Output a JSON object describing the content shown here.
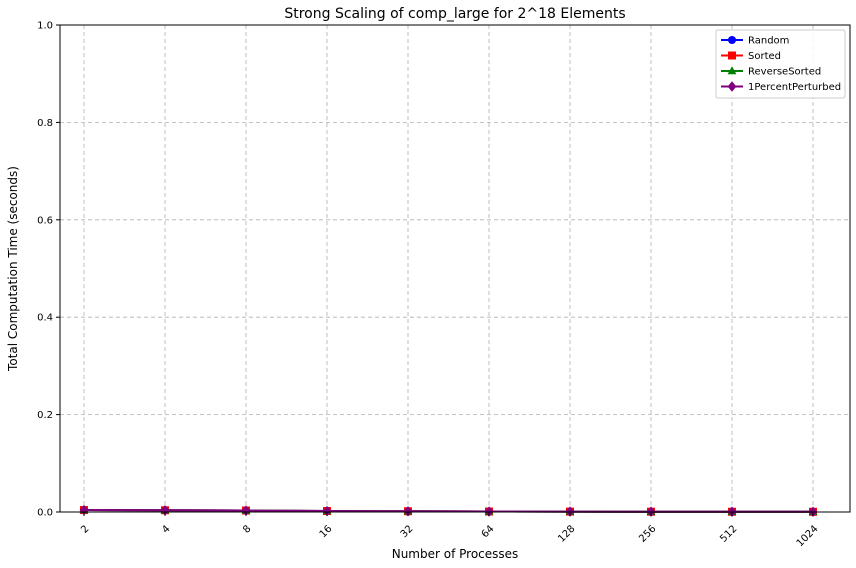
{
  "chart_data": {
    "type": "line",
    "title": "Strong Scaling of comp_large for 2^18 Elements",
    "xlabel": "Number of Processes",
    "ylabel": "Total Computation Time (seconds)",
    "categories": [
      "2",
      "4",
      "8",
      "16",
      "32",
      "64",
      "128",
      "256",
      "512",
      "1024"
    ],
    "x_scale": "log2",
    "ylim": [
      0,
      1.0
    ],
    "yticks": [
      "0.0",
      "0.2",
      "0.4",
      "0.6",
      "0.8",
      "1.0"
    ],
    "grid": true,
    "legend_position": "top-right",
    "series": [
      {
        "name": "Random",
        "color": "#0000ff",
        "marker": "circle",
        "values": [
          0.004,
          0.0035,
          0.003,
          0.002,
          0.0015,
          0.001,
          0.0008,
          0.0006,
          0.0005,
          0.0004
        ]
      },
      {
        "name": "Sorted",
        "color": "#ff0000",
        "marker": "square",
        "values": [
          0.004,
          0.0035,
          0.003,
          0.002,
          0.0015,
          0.001,
          0.0008,
          0.0006,
          0.0005,
          0.0004
        ]
      },
      {
        "name": "ReverseSorted",
        "color": "#008000",
        "marker": "triangle",
        "values": [
          0.004,
          0.0035,
          0.003,
          0.002,
          0.0015,
          0.001,
          0.0008,
          0.0006,
          0.0005,
          0.0004
        ]
      },
      {
        "name": "1PercentPerturbed",
        "color": "#800080",
        "marker": "diamond",
        "values": [
          0.004,
          0.0035,
          0.003,
          0.002,
          0.0015,
          0.001,
          0.0008,
          0.0006,
          0.0005,
          0.0004
        ]
      }
    ]
  }
}
